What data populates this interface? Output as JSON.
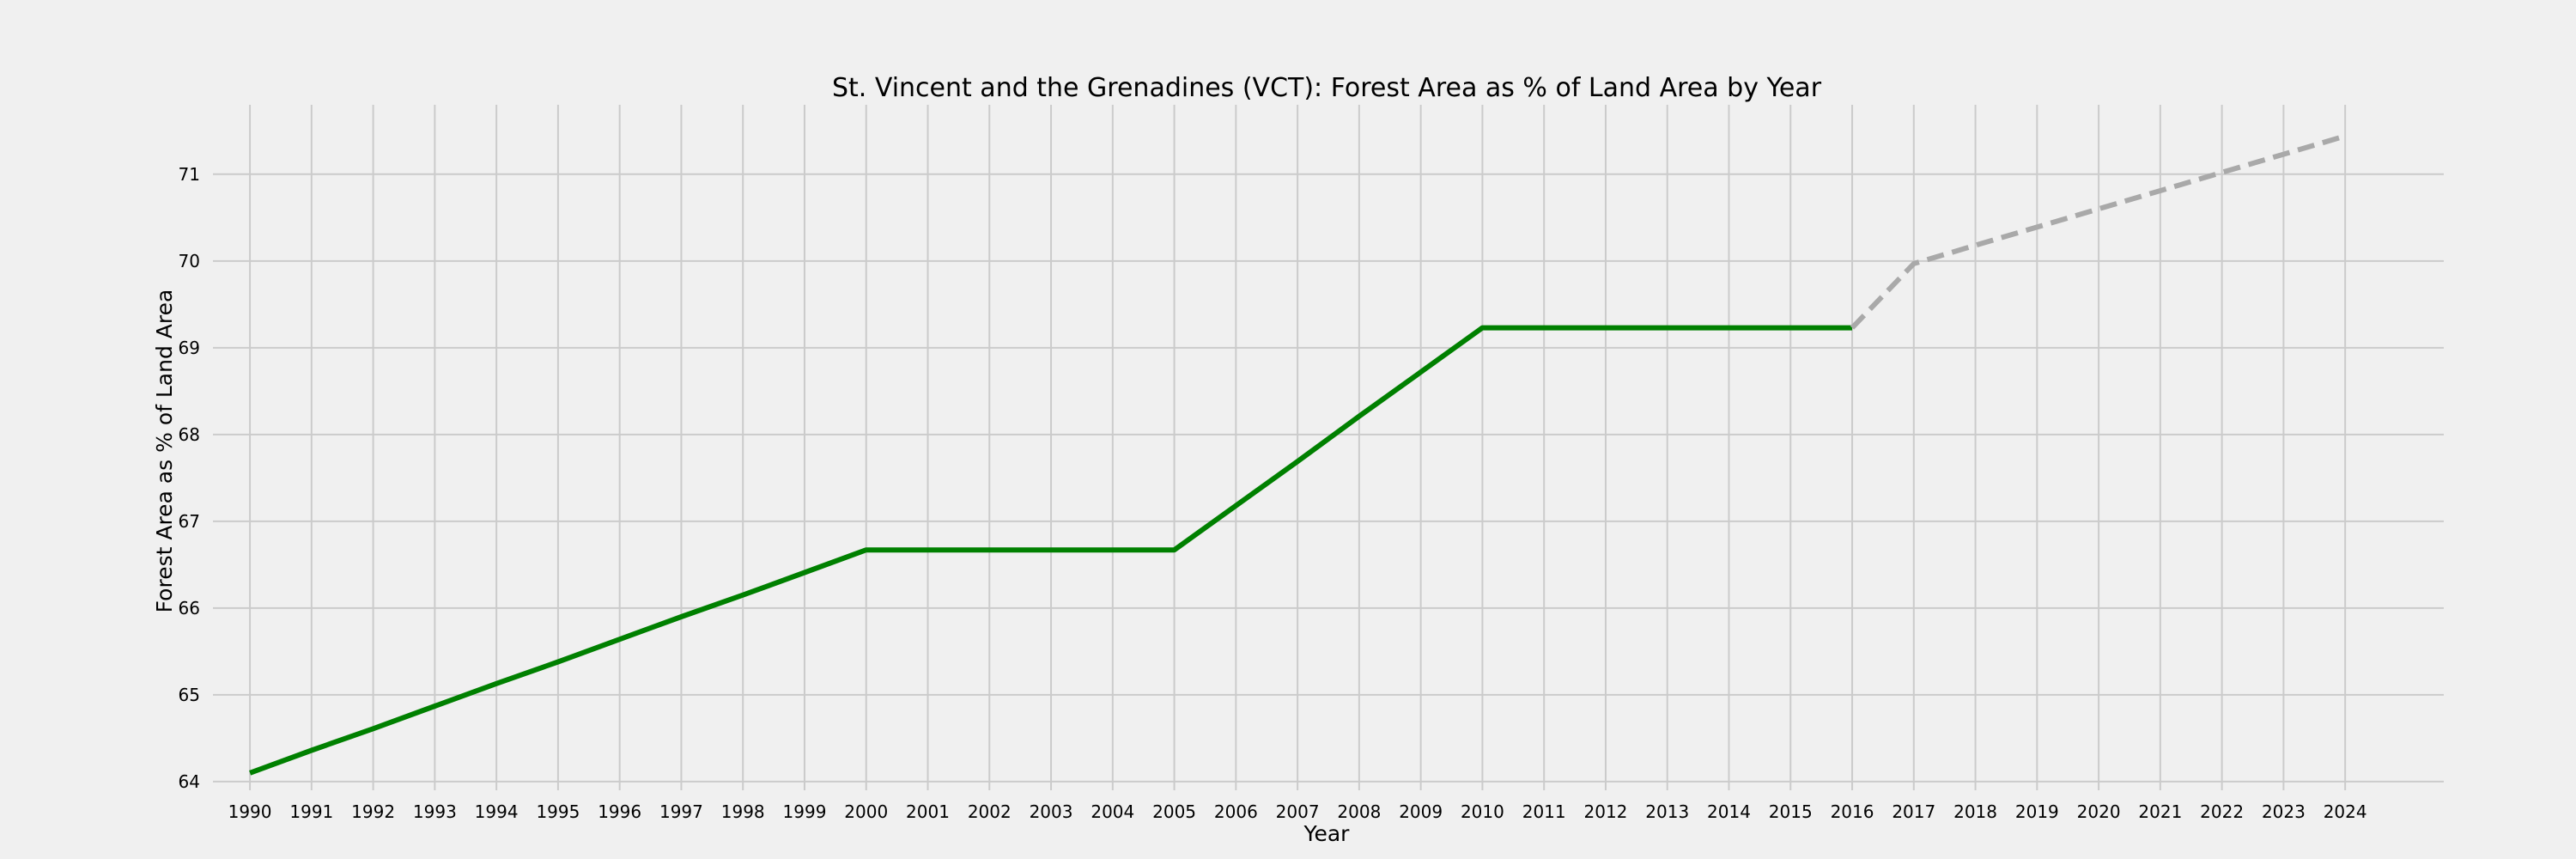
{
  "chart_data": {
    "type": "line",
    "title": "St. Vincent and the Grenadines (VCT): Forest Area as % of Land Area by Year",
    "xlabel": "Year",
    "ylabel": "Forest Area as % of Land Area",
    "x": [
      1990,
      1991,
      1992,
      1993,
      1994,
      1995,
      1996,
      1997,
      1998,
      1999,
      2000,
      2001,
      2002,
      2003,
      2004,
      2005,
      2006,
      2007,
      2008,
      2009,
      2010,
      2011,
      2012,
      2013,
      2014,
      2015,
      2016,
      2017,
      2018,
      2019,
      2020,
      2021,
      2022,
      2023,
      2024
    ],
    "yticks": [
      64,
      65,
      66,
      67,
      68,
      69,
      70,
      71
    ],
    "ylim": [
      63.9,
      71.8
    ],
    "xlim": [
      1989.4,
      2025.6
    ],
    "grid": true,
    "series": [
      {
        "role": "actual",
        "color": "#008000",
        "style": "solid",
        "x": [
          1990,
          1991,
          1992,
          1993,
          1994,
          1995,
          1996,
          1997,
          1998,
          1999,
          2000,
          2001,
          2002,
          2003,
          2004,
          2005,
          2006,
          2007,
          2008,
          2009,
          2010,
          2011,
          2012,
          2013,
          2014,
          2015,
          2016
        ],
        "values": [
          64.1,
          64.36,
          64.61,
          64.87,
          65.13,
          65.38,
          65.64,
          65.9,
          66.15,
          66.41,
          66.67,
          66.67,
          66.67,
          66.67,
          66.67,
          66.67,
          67.18,
          67.69,
          68.21,
          68.72,
          69.23,
          69.23,
          69.23,
          69.23,
          69.23,
          69.23,
          69.23
        ]
      },
      {
        "role": "projected",
        "color": "#a9a9a9",
        "style": "dashed",
        "x": [
          2016,
          2017,
          2018,
          2019,
          2020,
          2021,
          2022,
          2023,
          2024
        ],
        "values": [
          69.23,
          69.97,
          70.18,
          70.39,
          70.6,
          70.81,
          71.02,
          71.23,
          71.44
        ]
      }
    ]
  }
}
